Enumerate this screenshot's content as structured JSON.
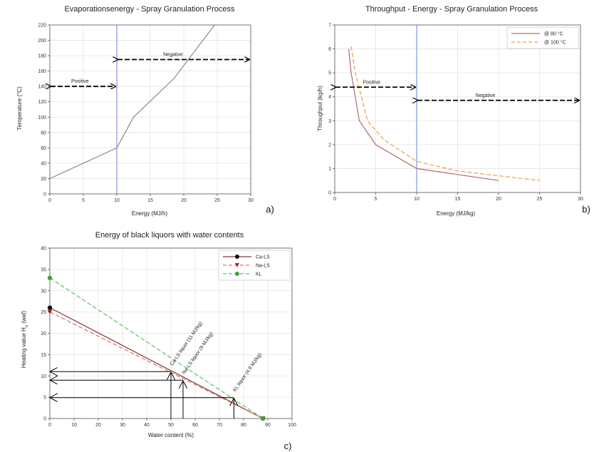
{
  "chart_data": [
    {
      "type": "line",
      "panel_label": "a)",
      "title": "Evaporationsenergy - Spray Granulation Process",
      "xlabel": "Energy (MJ/h)",
      "ylabel": "Temperature (°C)",
      "xlim": [
        0,
        30
      ],
      "ylim": [
        0,
        220
      ],
      "xticks": [
        0,
        5,
        10,
        15,
        20,
        25,
        30
      ],
      "yticks": [
        0,
        20,
        40,
        60,
        80,
        100,
        120,
        140,
        160,
        180,
        200,
        220
      ],
      "grid": true,
      "series": [
        {
          "x": [
            0,
            10,
            12.5,
            18.5,
            25.5
          ],
          "y": [
            20,
            60,
            100,
            150,
            230
          ],
          "color": "#8a8a8a"
        }
      ],
      "divider_x": 10,
      "regions": [
        {
          "label": "Positive",
          "x_from": 0,
          "x_to": 10,
          "y": 140
        },
        {
          "label": "Negative",
          "x_from": 10,
          "x_to": 30,
          "y": 175
        }
      ]
    },
    {
      "type": "line",
      "panel_label": "b)",
      "title": "Throughput - Energy - Spray Granulation Process",
      "xlabel": "Energy (MJ/kg)",
      "ylabel": "Throughput (kg/h)",
      "xlim": [
        0,
        30
      ],
      "ylim": [
        0,
        7
      ],
      "xticks": [
        0,
        5,
        10,
        15,
        20,
        25,
        30
      ],
      "yticks": [
        0,
        1,
        2,
        3,
        4,
        5,
        6,
        7
      ],
      "grid": true,
      "legend_position": "top-right",
      "series": [
        {
          "name": "@ 80 °C",
          "x": [
            1.7,
            2,
            3,
            5,
            10,
            15,
            20
          ],
          "y": [
            6,
            5,
            3,
            2,
            1,
            0.75,
            0.5
          ],
          "color": "#b06a6a",
          "dash": false
        },
        {
          "name": "@ 100 °C",
          "x": [
            2,
            2.5,
            4,
            6,
            10,
            15,
            20,
            25
          ],
          "y": [
            6.1,
            5,
            3,
            2.2,
            1.3,
            0.9,
            0.7,
            0.5
          ],
          "color": "#e8a040",
          "dash": true
        }
      ],
      "divider_x": 10,
      "regions": [
        {
          "label": "Positive",
          "x_from": 0,
          "x_to": 10,
          "y": 4.4
        },
        {
          "label": "Negative",
          "x_from": 10,
          "x_to": 30,
          "y": 3.85
        }
      ]
    },
    {
      "type": "line",
      "panel_label": "c)",
      "title": "Energy of black liquors with water contents",
      "xlabel": "Water content (%)",
      "ylabel": "Heating value H",
      "ylabel_sub": "u",
      "ylabel_suffix": " (waf)",
      "xlim": [
        0,
        100
      ],
      "ylim": [
        0,
        40
      ],
      "xticks": [
        0,
        10,
        20,
        30,
        40,
        50,
        60,
        70,
        80,
        90,
        100
      ],
      "yticks": [
        0,
        5,
        10,
        15,
        20,
        25,
        30,
        35,
        40
      ],
      "grid": true,
      "legend_position": "top-right",
      "series": [
        {
          "name": "Ca-LS",
          "x": [
            0,
            88
          ],
          "y": [
            26,
            0
          ],
          "color": "#7a3a3a",
          "dash": false,
          "marker": "circle",
          "marker_color": "#111111"
        },
        {
          "name": "Na-LS",
          "x": [
            0,
            88
          ],
          "y": [
            25,
            0
          ],
          "color": "#e07070",
          "dash": true,
          "marker": "triangle",
          "marker_color": "#b02020"
        },
        {
          "name": "KL",
          "x": [
            0,
            88
          ],
          "y": [
            33,
            0
          ],
          "color": "#60c060",
          "dash": true,
          "marker": "circle",
          "marker_color": "#40a040"
        }
      ],
      "annotations": [
        {
          "label": "Ca-LS liquor (11 MJ/kg)",
          "x": 50,
          "y": 11
        },
        {
          "label": "Na-LS liquor (9 MJ/kg)",
          "x": 55,
          "y": 9
        },
        {
          "label": "KL liquor (4.9 MJ/kg)",
          "x": 76,
          "y": 4.9
        }
      ]
    }
  ]
}
